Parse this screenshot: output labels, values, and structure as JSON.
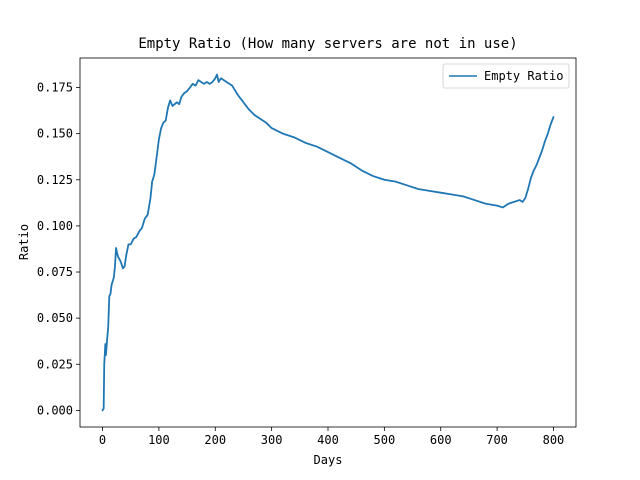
{
  "chart_data": {
    "type": "line",
    "title": "Empty Ratio (How many servers are not in use)",
    "xlabel": "Days",
    "ylabel": "Ratio",
    "xlim": [
      -40,
      840
    ],
    "ylim": [
      -0.009,
      0.191
    ],
    "xticks": [
      0,
      100,
      200,
      300,
      400,
      500,
      600,
      700,
      800
    ],
    "xtick_labels": [
      "0",
      "100",
      "200",
      "300",
      "400",
      "500",
      "600",
      "700",
      "800"
    ],
    "yticks": [
      0,
      0.025,
      0.05,
      0.075,
      0.1,
      0.125,
      0.15,
      0.175
    ],
    "ytick_labels": [
      "0.000",
      "0.025",
      "0.050",
      "0.075",
      "0.100",
      "0.125",
      "0.150",
      "0.175"
    ],
    "grid": false,
    "legend": {
      "position": "top-right",
      "entries": [
        "Empty Ratio"
      ]
    },
    "series": [
      {
        "name": "Empty Ratio",
        "color": "#1f77b4",
        "points": [
          [
            0,
            0.0
          ],
          [
            2,
            0.001
          ],
          [
            3,
            0.025
          ],
          [
            5,
            0.036
          ],
          [
            6,
            0.03
          ],
          [
            8,
            0.038
          ],
          [
            10,
            0.045
          ],
          [
            12,
            0.062
          ],
          [
            14,
            0.063
          ],
          [
            16,
            0.068
          ],
          [
            18,
            0.07
          ],
          [
            20,
            0.072
          ],
          [
            22,
            0.078
          ],
          [
            24,
            0.088
          ],
          [
            26,
            0.085
          ],
          [
            28,
            0.083
          ],
          [
            30,
            0.082
          ],
          [
            33,
            0.08
          ],
          [
            36,
            0.077
          ],
          [
            39,
            0.078
          ],
          [
            42,
            0.084
          ],
          [
            46,
            0.09
          ],
          [
            50,
            0.09
          ],
          [
            55,
            0.093
          ],
          [
            60,
            0.094
          ],
          [
            65,
            0.097
          ],
          [
            70,
            0.099
          ],
          [
            75,
            0.104
          ],
          [
            80,
            0.106
          ],
          [
            85,
            0.115
          ],
          [
            88,
            0.124
          ],
          [
            92,
            0.128
          ],
          [
            95,
            0.135
          ],
          [
            100,
            0.147
          ],
          [
            104,
            0.153
          ],
          [
            108,
            0.156
          ],
          [
            112,
            0.157
          ],
          [
            116,
            0.164
          ],
          [
            120,
            0.168
          ],
          [
            124,
            0.165
          ],
          [
            128,
            0.166
          ],
          [
            132,
            0.167
          ],
          [
            136,
            0.166
          ],
          [
            140,
            0.17
          ],
          [
            145,
            0.172
          ],
          [
            150,
            0.173
          ],
          [
            155,
            0.175
          ],
          [
            160,
            0.177
          ],
          [
            165,
            0.176
          ],
          [
            170,
            0.179
          ],
          [
            175,
            0.178
          ],
          [
            180,
            0.177
          ],
          [
            185,
            0.178
          ],
          [
            190,
            0.177
          ],
          [
            195,
            0.178
          ],
          [
            200,
            0.18
          ],
          [
            203,
            0.182
          ],
          [
            206,
            0.178
          ],
          [
            210,
            0.18
          ],
          [
            215,
            0.179
          ],
          [
            220,
            0.178
          ],
          [
            230,
            0.176
          ],
          [
            240,
            0.171
          ],
          [
            250,
            0.167
          ],
          [
            260,
            0.163
          ],
          [
            270,
            0.16
          ],
          [
            280,
            0.158
          ],
          [
            290,
            0.156
          ],
          [
            300,
            0.153
          ],
          [
            320,
            0.15
          ],
          [
            340,
            0.148
          ],
          [
            360,
            0.145
          ],
          [
            380,
            0.143
          ],
          [
            400,
            0.14
          ],
          [
            420,
            0.137
          ],
          [
            440,
            0.134
          ],
          [
            460,
            0.13
          ],
          [
            480,
            0.127
          ],
          [
            500,
            0.125
          ],
          [
            520,
            0.124
          ],
          [
            540,
            0.122
          ],
          [
            560,
            0.12
          ],
          [
            580,
            0.119
          ],
          [
            600,
            0.118
          ],
          [
            620,
            0.117
          ],
          [
            640,
            0.116
          ],
          [
            660,
            0.114
          ],
          [
            680,
            0.112
          ],
          [
            700,
            0.111
          ],
          [
            710,
            0.11
          ],
          [
            720,
            0.112
          ],
          [
            730,
            0.113
          ],
          [
            740,
            0.114
          ],
          [
            745,
            0.113
          ],
          [
            750,
            0.115
          ],
          [
            755,
            0.12
          ],
          [
            760,
            0.126
          ],
          [
            765,
            0.13
          ],
          [
            770,
            0.133
          ],
          [
            775,
            0.137
          ],
          [
            780,
            0.141
          ],
          [
            785,
            0.146
          ],
          [
            790,
            0.15
          ],
          [
            795,
            0.155
          ],
          [
            800,
            0.159
          ]
        ]
      }
    ]
  }
}
